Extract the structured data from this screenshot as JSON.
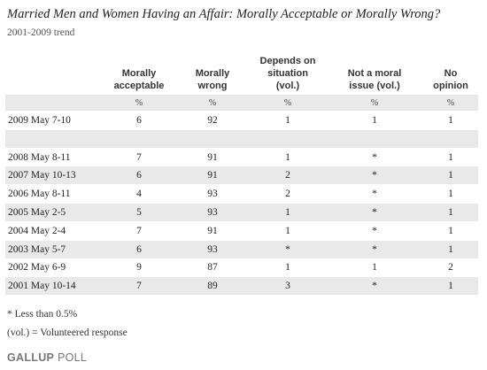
{
  "header": {
    "title": "Married Men and Women Having an Affair: Morally Acceptable or Morally Wrong?",
    "subtitle": "2001-2009 trend"
  },
  "table": {
    "columns": [
      [
        "Morally",
        "acceptable"
      ],
      [
        "Morally",
        "wrong"
      ],
      [
        "Depends on",
        "situation",
        "(vol.)"
      ],
      [
        "Not a moral",
        "issue (vol.)"
      ],
      [
        "No",
        "opinion"
      ]
    ],
    "units": [
      "%",
      "%",
      "%",
      "%",
      "%"
    ],
    "rows": [
      [
        "2009 May 7-10",
        6,
        92,
        1,
        1,
        1
      ],
      [
        "2008 May 8-11",
        7,
        91,
        1,
        "*",
        1
      ],
      [
        "2007 May 10-13",
        6,
        91,
        2,
        "*",
        1
      ],
      [
        "2006 May 8-11",
        4,
        93,
        2,
        "*",
        1
      ],
      [
        "2005 May 2-5",
        5,
        93,
        1,
        "*",
        1
      ],
      [
        "2004 May 2-4",
        7,
        91,
        1,
        "*",
        1
      ],
      [
        "2003 May 5-7",
        6,
        93,
        "*",
        "*",
        1
      ],
      [
        "2002 May 6-9",
        9,
        87,
        1,
        1,
        2
      ],
      [
        "2001 May 10-14",
        7,
        89,
        3,
        "*",
        1
      ]
    ]
  },
  "footnotes": [
    "* Less than 0.5%",
    "(vol.) = Volunteered response"
  ],
  "logo": {
    "brand": "GALLUP",
    "product": "POLL"
  }
}
